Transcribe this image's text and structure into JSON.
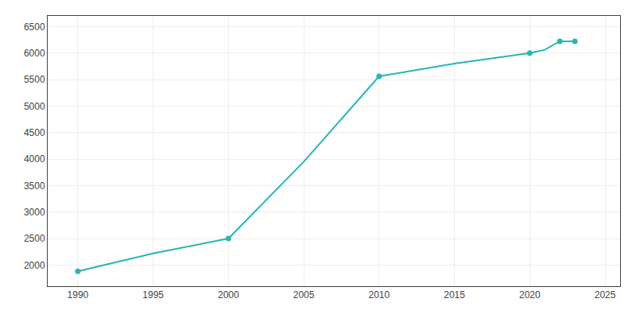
{
  "chart_data": {
    "type": "line",
    "x": [
      1990,
      1995,
      2000,
      2005,
      2010,
      2015,
      2020,
      2021,
      2022,
      2023
    ],
    "series": [
      {
        "color": "#2ab5b5",
        "line_style": "solid",
        "values": [
          1880,
          2220,
          2500,
          3950,
          5560,
          5800,
          6000,
          6060,
          6220,
          6220
        ]
      },
      {
        "color": "#2ab5b5",
        "marker": "circle",
        "line_style": "none",
        "values": [
          1880,
          null,
          2500,
          null,
          5560,
          null,
          6000,
          null,
          6220,
          6220
        ]
      }
    ],
    "xlim": [
      1988,
      2026
    ],
    "ylim": [
      1600,
      6700
    ],
    "xticks": [
      1990,
      1995,
      2000,
      2005,
      2010,
      2015,
      2020,
      2025
    ],
    "yticks": [
      2000,
      2500,
      3000,
      3500,
      4000,
      4500,
      5000,
      5500,
      6000,
      6500
    ],
    "grid": true
  }
}
